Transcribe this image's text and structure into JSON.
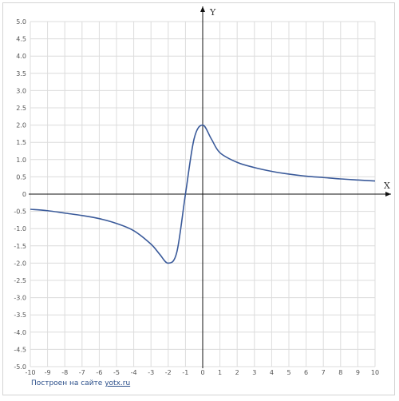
{
  "chart_data": {
    "type": "line",
    "title": "",
    "xlabel": "X",
    "ylabel": "Y",
    "xlim": [
      -10,
      10
    ],
    "ylim": [
      -5,
      5
    ],
    "x_ticks": [
      "-10",
      "-9",
      "-8",
      "-7",
      "-6",
      "-5",
      "-4",
      "-3",
      "-2",
      "-1",
      "0",
      "1",
      "2",
      "3",
      "4",
      "5",
      "6",
      "7",
      "8",
      "9",
      "10"
    ],
    "y_ticks": [
      "5.0",
      "4.5",
      "4.0",
      "3.5",
      "3.0",
      "2.5",
      "2.0",
      "1.5",
      "1.0",
      "0.5",
      "0",
      "-0.5",
      "-1.0",
      "-1.5",
      "-2.0",
      "-2.5",
      "-3.0",
      "-3.5",
      "-4.0",
      "-4.5",
      "-5.0"
    ],
    "grid": true,
    "series": [
      {
        "color": "#3a5a9a",
        "x": [
          -10,
          -9,
          -8,
          -7,
          -6,
          -5,
          -4,
          -3,
          -2.5,
          -2,
          -1.5,
          -1,
          -0.5,
          0,
          0.5,
          1,
          2,
          3,
          4,
          5,
          6,
          7,
          8,
          9,
          10
        ],
        "y": [
          -0.44,
          -0.48,
          -0.55,
          -0.62,
          -0.71,
          -0.85,
          -1.06,
          -1.45,
          -1.74,
          -2.0,
          -1.68,
          0.0,
          1.6,
          2.0,
          1.6,
          1.2,
          0.92,
          0.77,
          0.66,
          0.58,
          0.52,
          0.48,
          0.44,
          0.41,
          0.38
        ]
      }
    ]
  },
  "credit": {
    "prefix": "Построен на сайте",
    "link": "yotx.ru"
  }
}
